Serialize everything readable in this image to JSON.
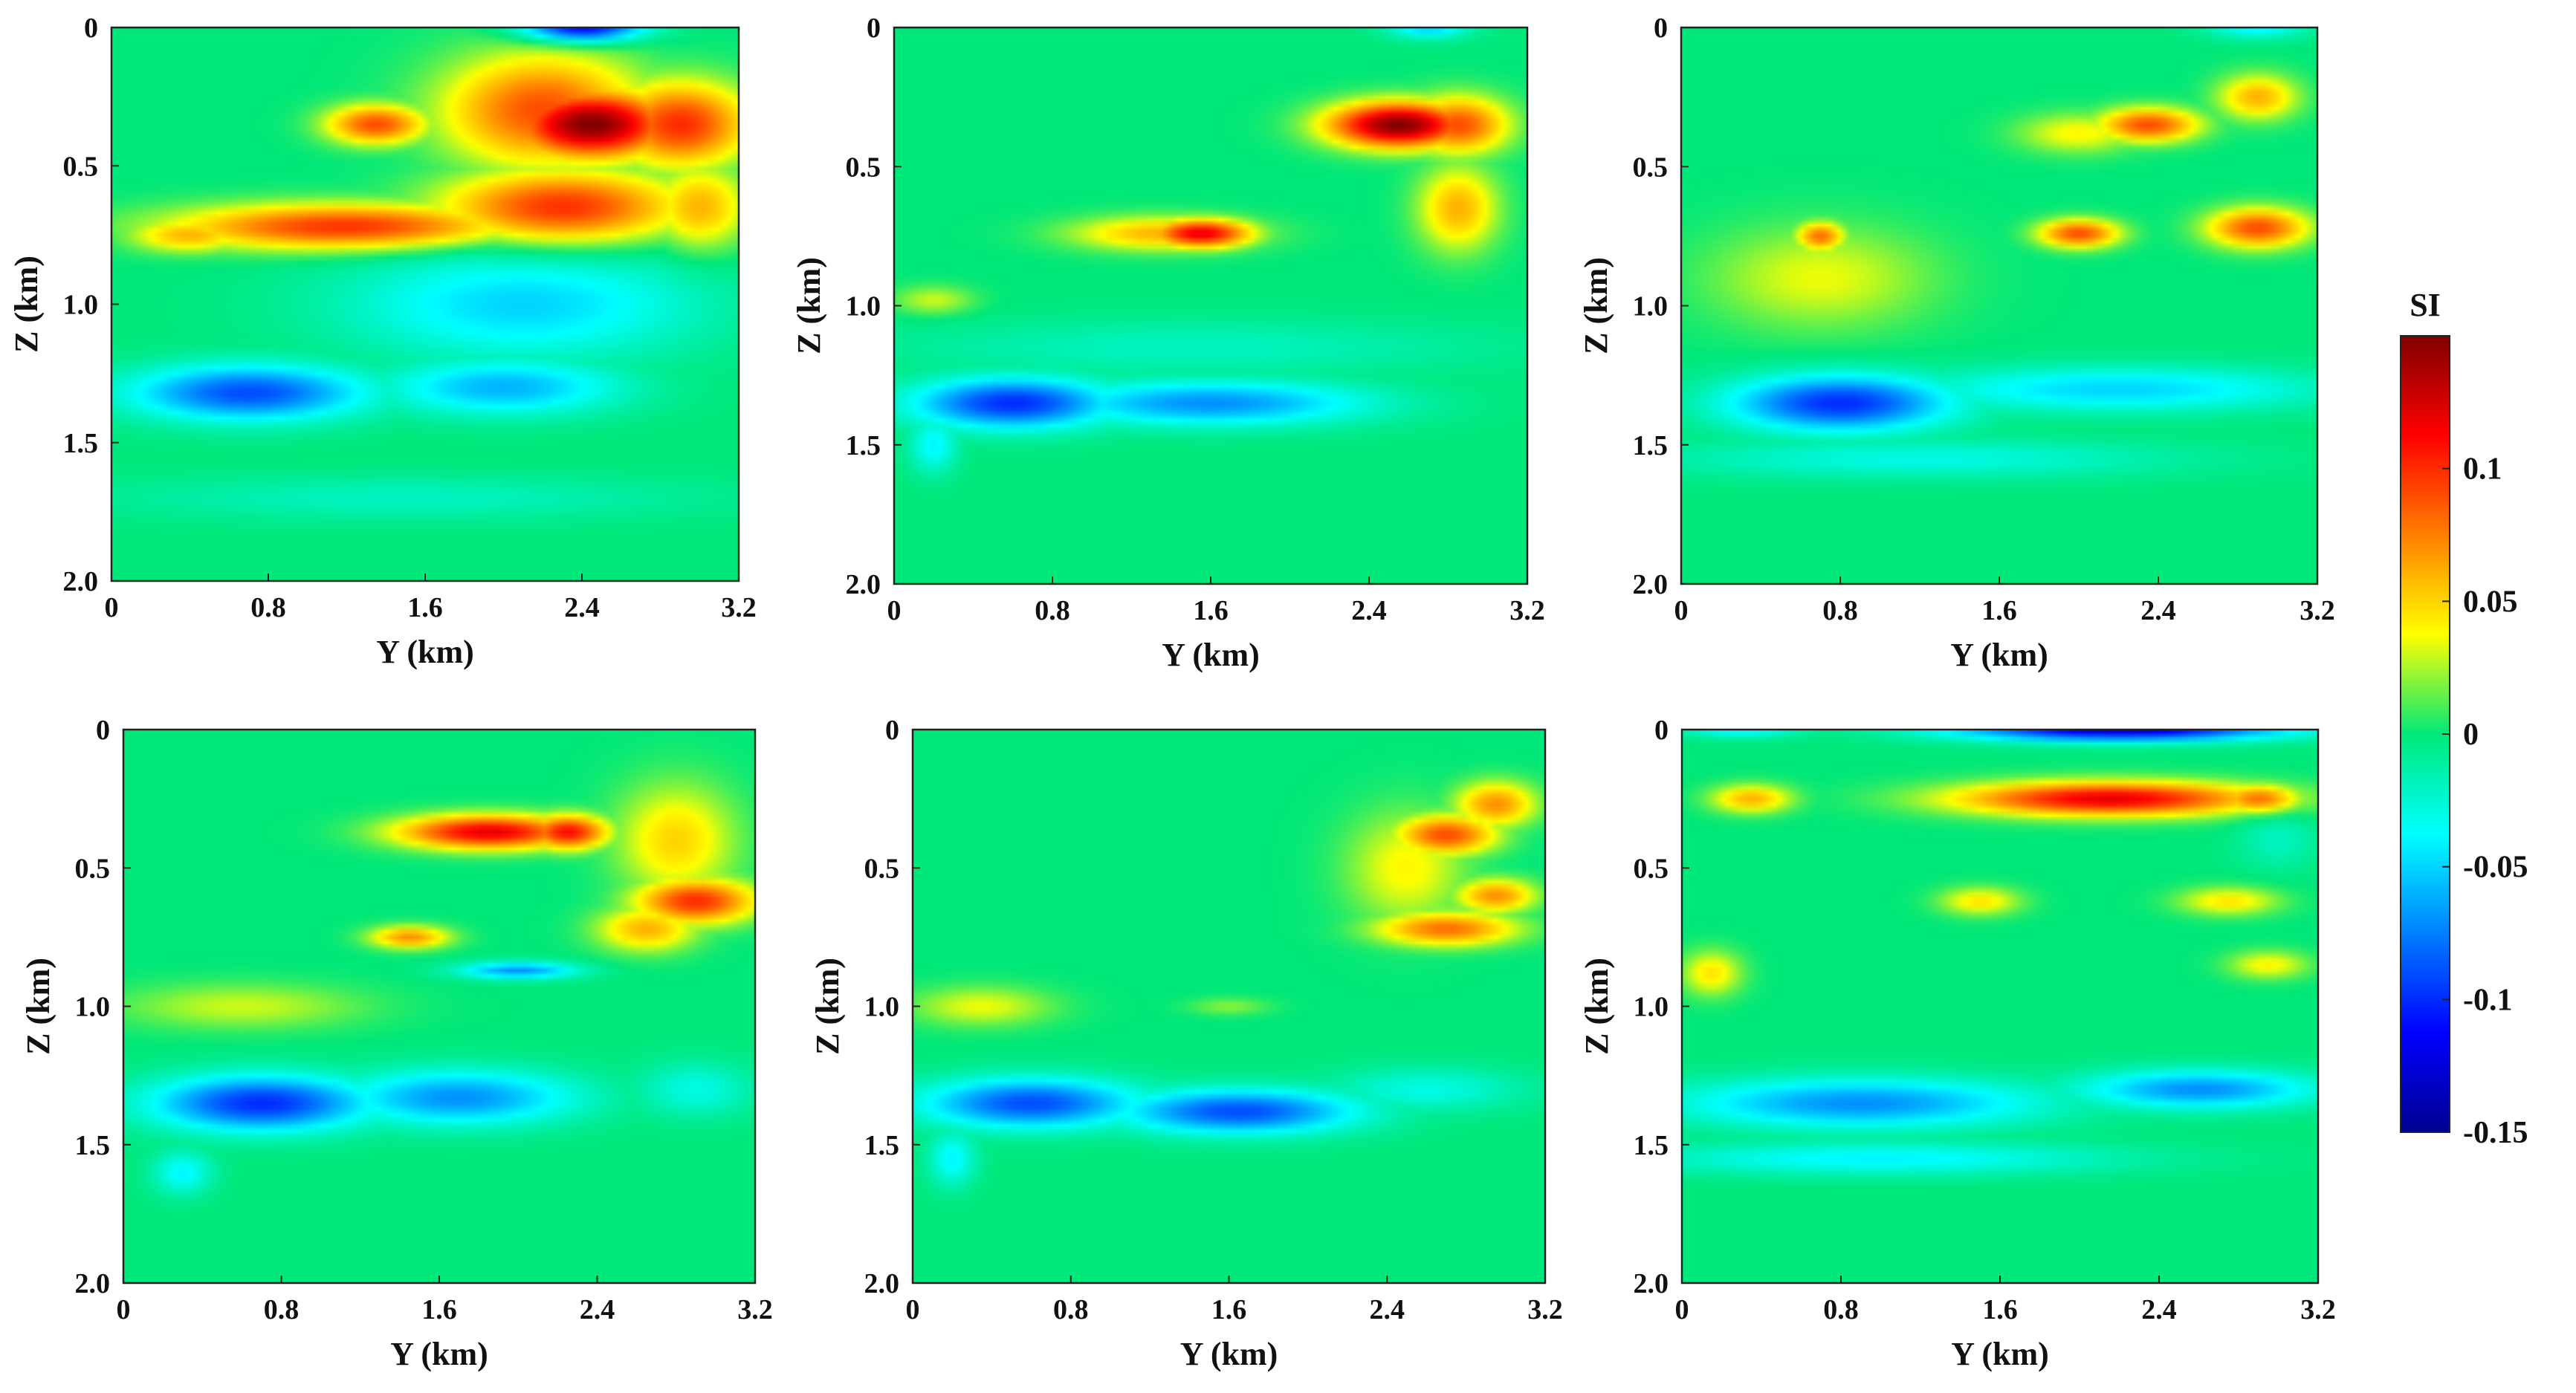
{
  "chart_data": [
    {
      "type": "heatmap",
      "panel": "top-left",
      "xlabel": "Y (km)",
      "ylabel": "Z (km)",
      "xlim": [
        0,
        3.2
      ],
      "ylim": [
        2.0,
        0
      ],
      "x_ticks": [
        "0",
        "0.8",
        "1.6",
        "2.4",
        "3.2"
      ],
      "y_ticks": [
        "0",
        "0.5",
        "1.0",
        "1.5",
        "2.0"
      ],
      "background_value": 0,
      "blobs": [
        {
          "y_km": 2.4,
          "z_km": 0.0,
          "w_km": 0.3,
          "h_km": 0.05,
          "value": -0.12
        },
        {
          "y_km": 2.45,
          "z_km": 0.35,
          "w_km": 0.4,
          "h_km": 0.12,
          "value": 0.15
        },
        {
          "y_km": 2.2,
          "z_km": 0.3,
          "w_km": 0.5,
          "h_km": 0.2,
          "value": 0.09
        },
        {
          "y_km": 2.9,
          "z_km": 0.35,
          "w_km": 0.35,
          "h_km": 0.15,
          "value": 0.1
        },
        {
          "y_km": 1.35,
          "z_km": 0.35,
          "w_km": 0.25,
          "h_km": 0.07,
          "value": 0.09
        },
        {
          "y_km": 1.2,
          "z_km": 0.72,
          "w_km": 0.85,
          "h_km": 0.08,
          "value": 0.1
        },
        {
          "y_km": 2.3,
          "z_km": 0.65,
          "w_km": 0.6,
          "h_km": 0.13,
          "value": 0.1
        },
        {
          "y_km": 3.0,
          "z_km": 0.65,
          "w_km": 0.25,
          "h_km": 0.15,
          "value": 0.06
        },
        {
          "y_km": 0.4,
          "z_km": 0.75,
          "w_km": 0.3,
          "h_km": 0.06,
          "value": 0.06
        },
        {
          "y_km": 2.1,
          "z_km": 1.0,
          "w_km": 0.9,
          "h_km": 0.2,
          "value": -0.05
        },
        {
          "y_km": 0.7,
          "z_km": 1.32,
          "w_km": 0.6,
          "h_km": 0.1,
          "value": -0.09
        },
        {
          "y_km": 2.0,
          "z_km": 1.3,
          "w_km": 0.6,
          "h_km": 0.1,
          "value": -0.06
        },
        {
          "y_km": 1.5,
          "z_km": 1.7,
          "w_km": 1.5,
          "h_km": 0.08,
          "value": -0.02
        }
      ]
    },
    {
      "type": "heatmap",
      "panel": "top-middle",
      "xlabel": "Y (km)",
      "ylabel": "Z (km)",
      "xlim": [
        0,
        3.2
      ],
      "ylim": [
        2.0,
        0
      ],
      "x_ticks": [
        "0",
        "0.8",
        "1.6",
        "2.4",
        "3.2"
      ],
      "y_ticks": [
        "0",
        "0.5",
        "1.0",
        "1.5",
        "2.0"
      ],
      "background_value": 0,
      "blobs": [
        {
          "y_km": 2.7,
          "z_km": 0.0,
          "w_km": 0.2,
          "h_km": 0.04,
          "value": -0.05
        },
        {
          "y_km": 2.55,
          "z_km": 0.35,
          "w_km": 0.35,
          "h_km": 0.08,
          "value": 0.15
        },
        {
          "y_km": 2.85,
          "z_km": 0.35,
          "w_km": 0.25,
          "h_km": 0.1,
          "value": 0.09
        },
        {
          "y_km": 2.85,
          "z_km": 0.65,
          "w_km": 0.2,
          "h_km": 0.15,
          "value": 0.06
        },
        {
          "y_km": 1.55,
          "z_km": 0.74,
          "w_km": 0.25,
          "h_km": 0.05,
          "value": 0.12
        },
        {
          "y_km": 1.35,
          "z_km": 0.74,
          "w_km": 0.45,
          "h_km": 0.06,
          "value": 0.06
        },
        {
          "y_km": 0.2,
          "z_km": 0.98,
          "w_km": 0.2,
          "h_km": 0.05,
          "value": 0.03
        },
        {
          "y_km": 0.6,
          "z_km": 1.35,
          "w_km": 0.5,
          "h_km": 0.09,
          "value": -0.1
        },
        {
          "y_km": 1.6,
          "z_km": 1.35,
          "w_km": 0.8,
          "h_km": 0.08,
          "value": -0.07
        },
        {
          "y_km": 0.2,
          "z_km": 1.5,
          "w_km": 0.12,
          "h_km": 0.1,
          "value": -0.04
        },
        {
          "y_km": 1.5,
          "z_km": 1.15,
          "w_km": 1.5,
          "h_km": 0.1,
          "value": -0.02
        }
      ]
    },
    {
      "type": "heatmap",
      "panel": "top-right",
      "xlabel": "Y (km)",
      "ylabel": "Z (km)",
      "xlim": [
        0,
        3.2
      ],
      "ylim": [
        2.0,
        0
      ],
      "x_ticks": [
        "0",
        "0.8",
        "1.6",
        "2.4",
        "3.2"
      ],
      "y_ticks": [
        "0",
        "0.5",
        "1.0",
        "1.5",
        "2.0"
      ],
      "background_value": 0,
      "blobs": [
        {
          "y_km": 2.9,
          "z_km": 0.0,
          "w_km": 0.25,
          "h_km": 0.04,
          "value": -0.04
        },
        {
          "y_km": 2.35,
          "z_km": 0.35,
          "w_km": 0.25,
          "h_km": 0.06,
          "value": 0.09
        },
        {
          "y_km": 2.9,
          "z_km": 0.25,
          "w_km": 0.2,
          "h_km": 0.08,
          "value": 0.06
        },
        {
          "y_km": 2.0,
          "z_km": 0.38,
          "w_km": 0.3,
          "h_km": 0.07,
          "value": 0.04
        },
        {
          "y_km": 2.0,
          "z_km": 0.74,
          "w_km": 0.2,
          "h_km": 0.05,
          "value": 0.09
        },
        {
          "y_km": 2.9,
          "z_km": 0.72,
          "w_km": 0.25,
          "h_km": 0.07,
          "value": 0.09
        },
        {
          "y_km": 0.7,
          "z_km": 0.75,
          "w_km": 0.12,
          "h_km": 0.05,
          "value": 0.08
        },
        {
          "y_km": 0.7,
          "z_km": 0.9,
          "w_km": 0.55,
          "h_km": 0.18,
          "value": 0.035
        },
        {
          "y_km": 0.8,
          "z_km": 1.35,
          "w_km": 0.55,
          "h_km": 0.1,
          "value": -0.1
        },
        {
          "y_km": 2.2,
          "z_km": 1.3,
          "w_km": 1.0,
          "h_km": 0.08,
          "value": -0.05
        },
        {
          "y_km": 1.2,
          "z_km": 1.55,
          "w_km": 1.3,
          "h_km": 0.07,
          "value": -0.03
        }
      ]
    },
    {
      "type": "heatmap",
      "panel": "bottom-left",
      "xlabel": "Y (km)",
      "ylabel": "Z (km)",
      "xlim": [
        0,
        3.2
      ],
      "ylim": [
        2.0,
        0
      ],
      "x_ticks": [
        "0",
        "0.8",
        "1.6",
        "2.4",
        "3.2"
      ],
      "y_ticks": [
        "0",
        "0.5",
        "1.0",
        "1.5",
        "2.0"
      ],
      "background_value": 0,
      "blobs": [
        {
          "y_km": 1.85,
          "z_km": 0.37,
          "w_km": 0.45,
          "h_km": 0.06,
          "value": 0.12
        },
        {
          "y_km": 2.25,
          "z_km": 0.37,
          "w_km": 0.2,
          "h_km": 0.06,
          "value": 0.11
        },
        {
          "y_km": 2.8,
          "z_km": 0.4,
          "w_km": 0.3,
          "h_km": 0.2,
          "value": 0.05
        },
        {
          "y_km": 2.9,
          "z_km": 0.62,
          "w_km": 0.3,
          "h_km": 0.08,
          "value": 0.1
        },
        {
          "y_km": 2.65,
          "z_km": 0.72,
          "w_km": 0.25,
          "h_km": 0.08,
          "value": 0.06
        },
        {
          "y_km": 1.45,
          "z_km": 0.75,
          "w_km": 0.2,
          "h_km": 0.04,
          "value": 0.07
        },
        {
          "y_km": 2.0,
          "z_km": 0.87,
          "w_km": 0.3,
          "h_km": 0.03,
          "value": -0.07
        },
        {
          "y_km": 0.6,
          "z_km": 1.0,
          "w_km": 0.6,
          "h_km": 0.08,
          "value": 0.03
        },
        {
          "y_km": 0.7,
          "z_km": 1.35,
          "w_km": 0.55,
          "h_km": 0.1,
          "value": -0.1
        },
        {
          "y_km": 1.7,
          "z_km": 1.33,
          "w_km": 0.6,
          "h_km": 0.1,
          "value": -0.07
        },
        {
          "y_km": 0.3,
          "z_km": 1.6,
          "w_km": 0.15,
          "h_km": 0.08,
          "value": -0.04
        },
        {
          "y_km": 2.9,
          "z_km": 1.3,
          "w_km": 0.3,
          "h_km": 0.1,
          "value": -0.03
        }
      ]
    },
    {
      "type": "heatmap",
      "panel": "bottom-middle",
      "xlabel": "Y (km)",
      "ylabel": "Z (km)",
      "xlim": [
        0,
        3.2
      ],
      "ylim": [
        2.0,
        0
      ],
      "x_ticks": [
        "0",
        "0.8",
        "1.6",
        "2.4",
        "3.2"
      ],
      "y_ticks": [
        "0",
        "0.5",
        "1.0",
        "1.5",
        "2.0"
      ],
      "background_value": 0,
      "blobs": [
        {
          "y_km": 2.7,
          "z_km": 0.38,
          "w_km": 0.25,
          "h_km": 0.07,
          "value": 0.09
        },
        {
          "y_km": 2.95,
          "z_km": 0.27,
          "w_km": 0.2,
          "h_km": 0.08,
          "value": 0.07
        },
        {
          "y_km": 2.7,
          "z_km": 0.72,
          "w_km": 0.35,
          "h_km": 0.06,
          "value": 0.08
        },
        {
          "y_km": 2.95,
          "z_km": 0.6,
          "w_km": 0.2,
          "h_km": 0.06,
          "value": 0.07
        },
        {
          "y_km": 2.5,
          "z_km": 0.5,
          "w_km": 0.3,
          "h_km": 0.2,
          "value": 0.04
        },
        {
          "y_km": 0.35,
          "z_km": 1.0,
          "w_km": 0.35,
          "h_km": 0.07,
          "value": 0.035
        },
        {
          "y_km": 1.6,
          "z_km": 1.0,
          "w_km": 0.2,
          "h_km": 0.03,
          "value": 0.02
        },
        {
          "y_km": 0.6,
          "z_km": 1.35,
          "w_km": 0.55,
          "h_km": 0.09,
          "value": -0.09
        },
        {
          "y_km": 1.65,
          "z_km": 1.38,
          "w_km": 0.6,
          "h_km": 0.08,
          "value": -0.09
        },
        {
          "y_km": 0.2,
          "z_km": 1.55,
          "w_km": 0.12,
          "h_km": 0.1,
          "value": -0.04
        },
        {
          "y_km": 2.6,
          "z_km": 1.3,
          "w_km": 0.5,
          "h_km": 0.08,
          "value": -0.03
        }
      ]
    },
    {
      "type": "heatmap",
      "panel": "bottom-right",
      "xlabel": "Y (km)",
      "ylabel": "Z (km)",
      "xlim": [
        0,
        3.2
      ],
      "ylim": [
        2.0,
        0
      ],
      "x_ticks": [
        "0",
        "0.8",
        "1.6",
        "2.4",
        "3.2"
      ],
      "y_ticks": [
        "0",
        "0.5",
        "1.0",
        "1.5",
        "2.0"
      ],
      "background_value": 0,
      "blobs": [
        {
          "y_km": 2.2,
          "z_km": 0.0,
          "w_km": 0.8,
          "h_km": 0.04,
          "value": -0.13
        },
        {
          "y_km": 0.3,
          "z_km": 0.0,
          "w_km": 0.3,
          "h_km": 0.03,
          "value": -0.04
        },
        {
          "y_km": 2.15,
          "z_km": 0.25,
          "w_km": 0.75,
          "h_km": 0.06,
          "value": 0.12
        },
        {
          "y_km": 2.9,
          "z_km": 0.25,
          "w_km": 0.2,
          "h_km": 0.05,
          "value": 0.08
        },
        {
          "y_km": 0.35,
          "z_km": 0.25,
          "w_km": 0.2,
          "h_km": 0.05,
          "value": 0.06
        },
        {
          "y_km": 1.5,
          "z_km": 0.62,
          "w_km": 0.2,
          "h_km": 0.05,
          "value": 0.045
        },
        {
          "y_km": 2.75,
          "z_km": 0.62,
          "w_km": 0.25,
          "h_km": 0.05,
          "value": 0.045
        },
        {
          "y_km": 2.95,
          "z_km": 0.85,
          "w_km": 0.2,
          "h_km": 0.05,
          "value": 0.04
        },
        {
          "y_km": 0.15,
          "z_km": 0.88,
          "w_km": 0.15,
          "h_km": 0.08,
          "value": 0.045
        },
        {
          "y_km": 0.9,
          "z_km": 1.35,
          "w_km": 0.9,
          "h_km": 0.09,
          "value": -0.07
        },
        {
          "y_km": 2.6,
          "z_km": 1.3,
          "w_km": 0.6,
          "h_km": 0.07,
          "value": -0.07
        },
        {
          "y_km": 1.0,
          "z_km": 1.55,
          "w_km": 1.2,
          "h_km": 0.06,
          "value": -0.04
        },
        {
          "y_km": 3.0,
          "z_km": 0.4,
          "w_km": 0.2,
          "h_km": 0.1,
          "value": -0.02
        }
      ]
    }
  ],
  "colorbar": {
    "title": "SI",
    "colormap": "jet",
    "range": [
      -0.15,
      0.15
    ],
    "ticks": [
      {
        "value": 0.1,
        "label": "0.1"
      },
      {
        "value": 0.05,
        "label": "0.05"
      },
      {
        "value": 0,
        "label": "0"
      },
      {
        "value": -0.05,
        "label": "-0.05"
      },
      {
        "value": -0.1,
        "label": "-0.1"
      },
      {
        "value": -0.15,
        "label": "-0.15"
      }
    ]
  }
}
